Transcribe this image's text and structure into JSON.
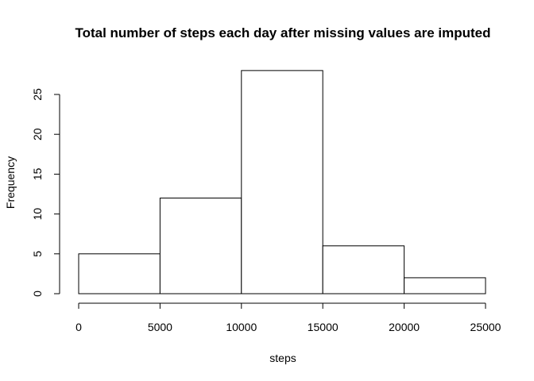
{
  "chart_data": {
    "type": "bar",
    "title": "Total number of steps each day after missing values are imputed",
    "xlabel": "steps",
    "ylabel": "Frequency",
    "bins": [
      {
        "start": 0,
        "end": 5000,
        "count": 5
      },
      {
        "start": 5000,
        "end": 10000,
        "count": 12
      },
      {
        "start": 10000,
        "end": 15000,
        "count": 28
      },
      {
        "start": 15000,
        "end": 20000,
        "count": 6
      },
      {
        "start": 20000,
        "end": 25000,
        "count": 2
      }
    ],
    "xlim": [
      0,
      25000
    ],
    "ylim": [
      0,
      28
    ],
    "xticks": [
      0,
      5000,
      10000,
      15000,
      20000,
      25000
    ],
    "yticks": [
      0,
      5,
      10,
      15,
      20,
      25
    ],
    "bar_fill": "#ffffff",
    "bar_stroke": "#000000",
    "grid": false
  }
}
